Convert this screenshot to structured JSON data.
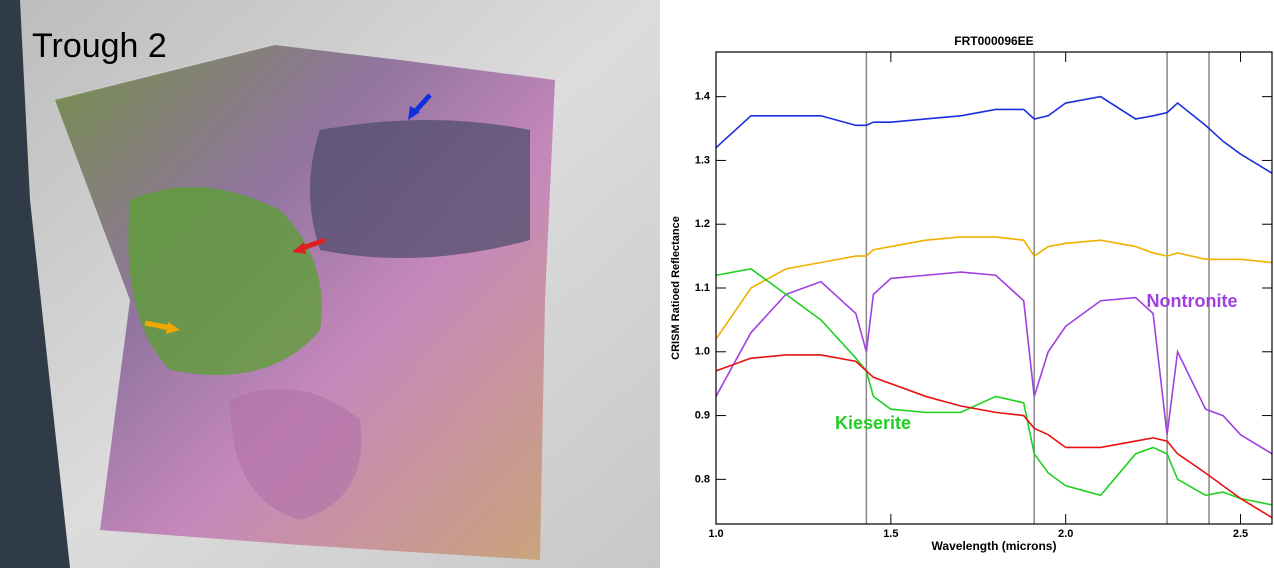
{
  "image_label": "Trough 2",
  "chart_data": {
    "type": "line",
    "title": "FRT000096EE",
    "x_label": "Wavelength (microns)",
    "y_label": "CRISM Ratioed Reflectance",
    "x": [
      1.0,
      1.1,
      1.2,
      1.3,
      1.4,
      1.43,
      1.45,
      1.5,
      1.6,
      1.7,
      1.8,
      1.88,
      1.91,
      1.95,
      2.0,
      2.1,
      2.2,
      2.25,
      2.29,
      2.32,
      2.4,
      2.45,
      2.5,
      2.59
    ],
    "series": [
      {
        "color": "#1a2fe0",
        "values": [
          1.32,
          1.37,
          1.37,
          1.37,
          1.355,
          1.355,
          1.36,
          1.36,
          1.365,
          1.37,
          1.38,
          1.38,
          1.365,
          1.37,
          1.39,
          1.4,
          1.365,
          1.37,
          1.375,
          1.39,
          1.355,
          1.33,
          1.31,
          1.28
        ]
      },
      {
        "color": "#f0b000",
        "values": [
          1.02,
          1.1,
          1.13,
          1.14,
          1.15,
          1.15,
          1.16,
          1.165,
          1.175,
          1.18,
          1.18,
          1.175,
          1.15,
          1.165,
          1.17,
          1.175,
          1.165,
          1.155,
          1.15,
          1.155,
          1.145,
          1.145,
          1.145,
          1.14
        ]
      },
      {
        "name": "Nontronite",
        "color": "#a040e0",
        "values": [
          0.93,
          1.03,
          1.09,
          1.11,
          1.06,
          1.0,
          1.09,
          1.115,
          1.12,
          1.125,
          1.12,
          1.08,
          0.93,
          1.0,
          1.04,
          1.08,
          1.085,
          1.06,
          0.87,
          1.0,
          0.91,
          0.9,
          0.87,
          0.84
        ]
      },
      {
        "name": "Kieserite",
        "color": "#20d020",
        "values": [
          1.12,
          1.13,
          1.09,
          1.05,
          0.99,
          0.97,
          0.93,
          0.91,
          0.905,
          0.905,
          0.93,
          0.92,
          0.84,
          0.81,
          0.79,
          0.775,
          0.84,
          0.85,
          0.84,
          0.8,
          0.775,
          0.78,
          0.77,
          0.76
        ]
      },
      {
        "color": "#e81010",
        "values": [
          0.97,
          0.99,
          0.995,
          0.995,
          0.985,
          0.97,
          0.96,
          0.95,
          0.93,
          0.915,
          0.905,
          0.9,
          0.88,
          0.87,
          0.85,
          0.85,
          0.86,
          0.865,
          0.86,
          0.84,
          0.81,
          0.79,
          0.77,
          0.74
        ]
      }
    ],
    "vlines": [
      1.43,
      1.91,
      2.29,
      2.41
    ],
    "xlim": [
      1.0,
      2.59
    ],
    "ylim": [
      0.73,
      1.47
    ],
    "xticks": [
      {
        "value": 1,
        "label": "1.0"
      },
      1.5,
      {
        "value": 2,
        "label": "2.0"
      },
      2.5
    ],
    "yticks": [
      0.8,
      0.9,
      {
        "value": 1,
        "label": "1.0"
      },
      1.1,
      1.2,
      1.3,
      1.4
    ]
  }
}
